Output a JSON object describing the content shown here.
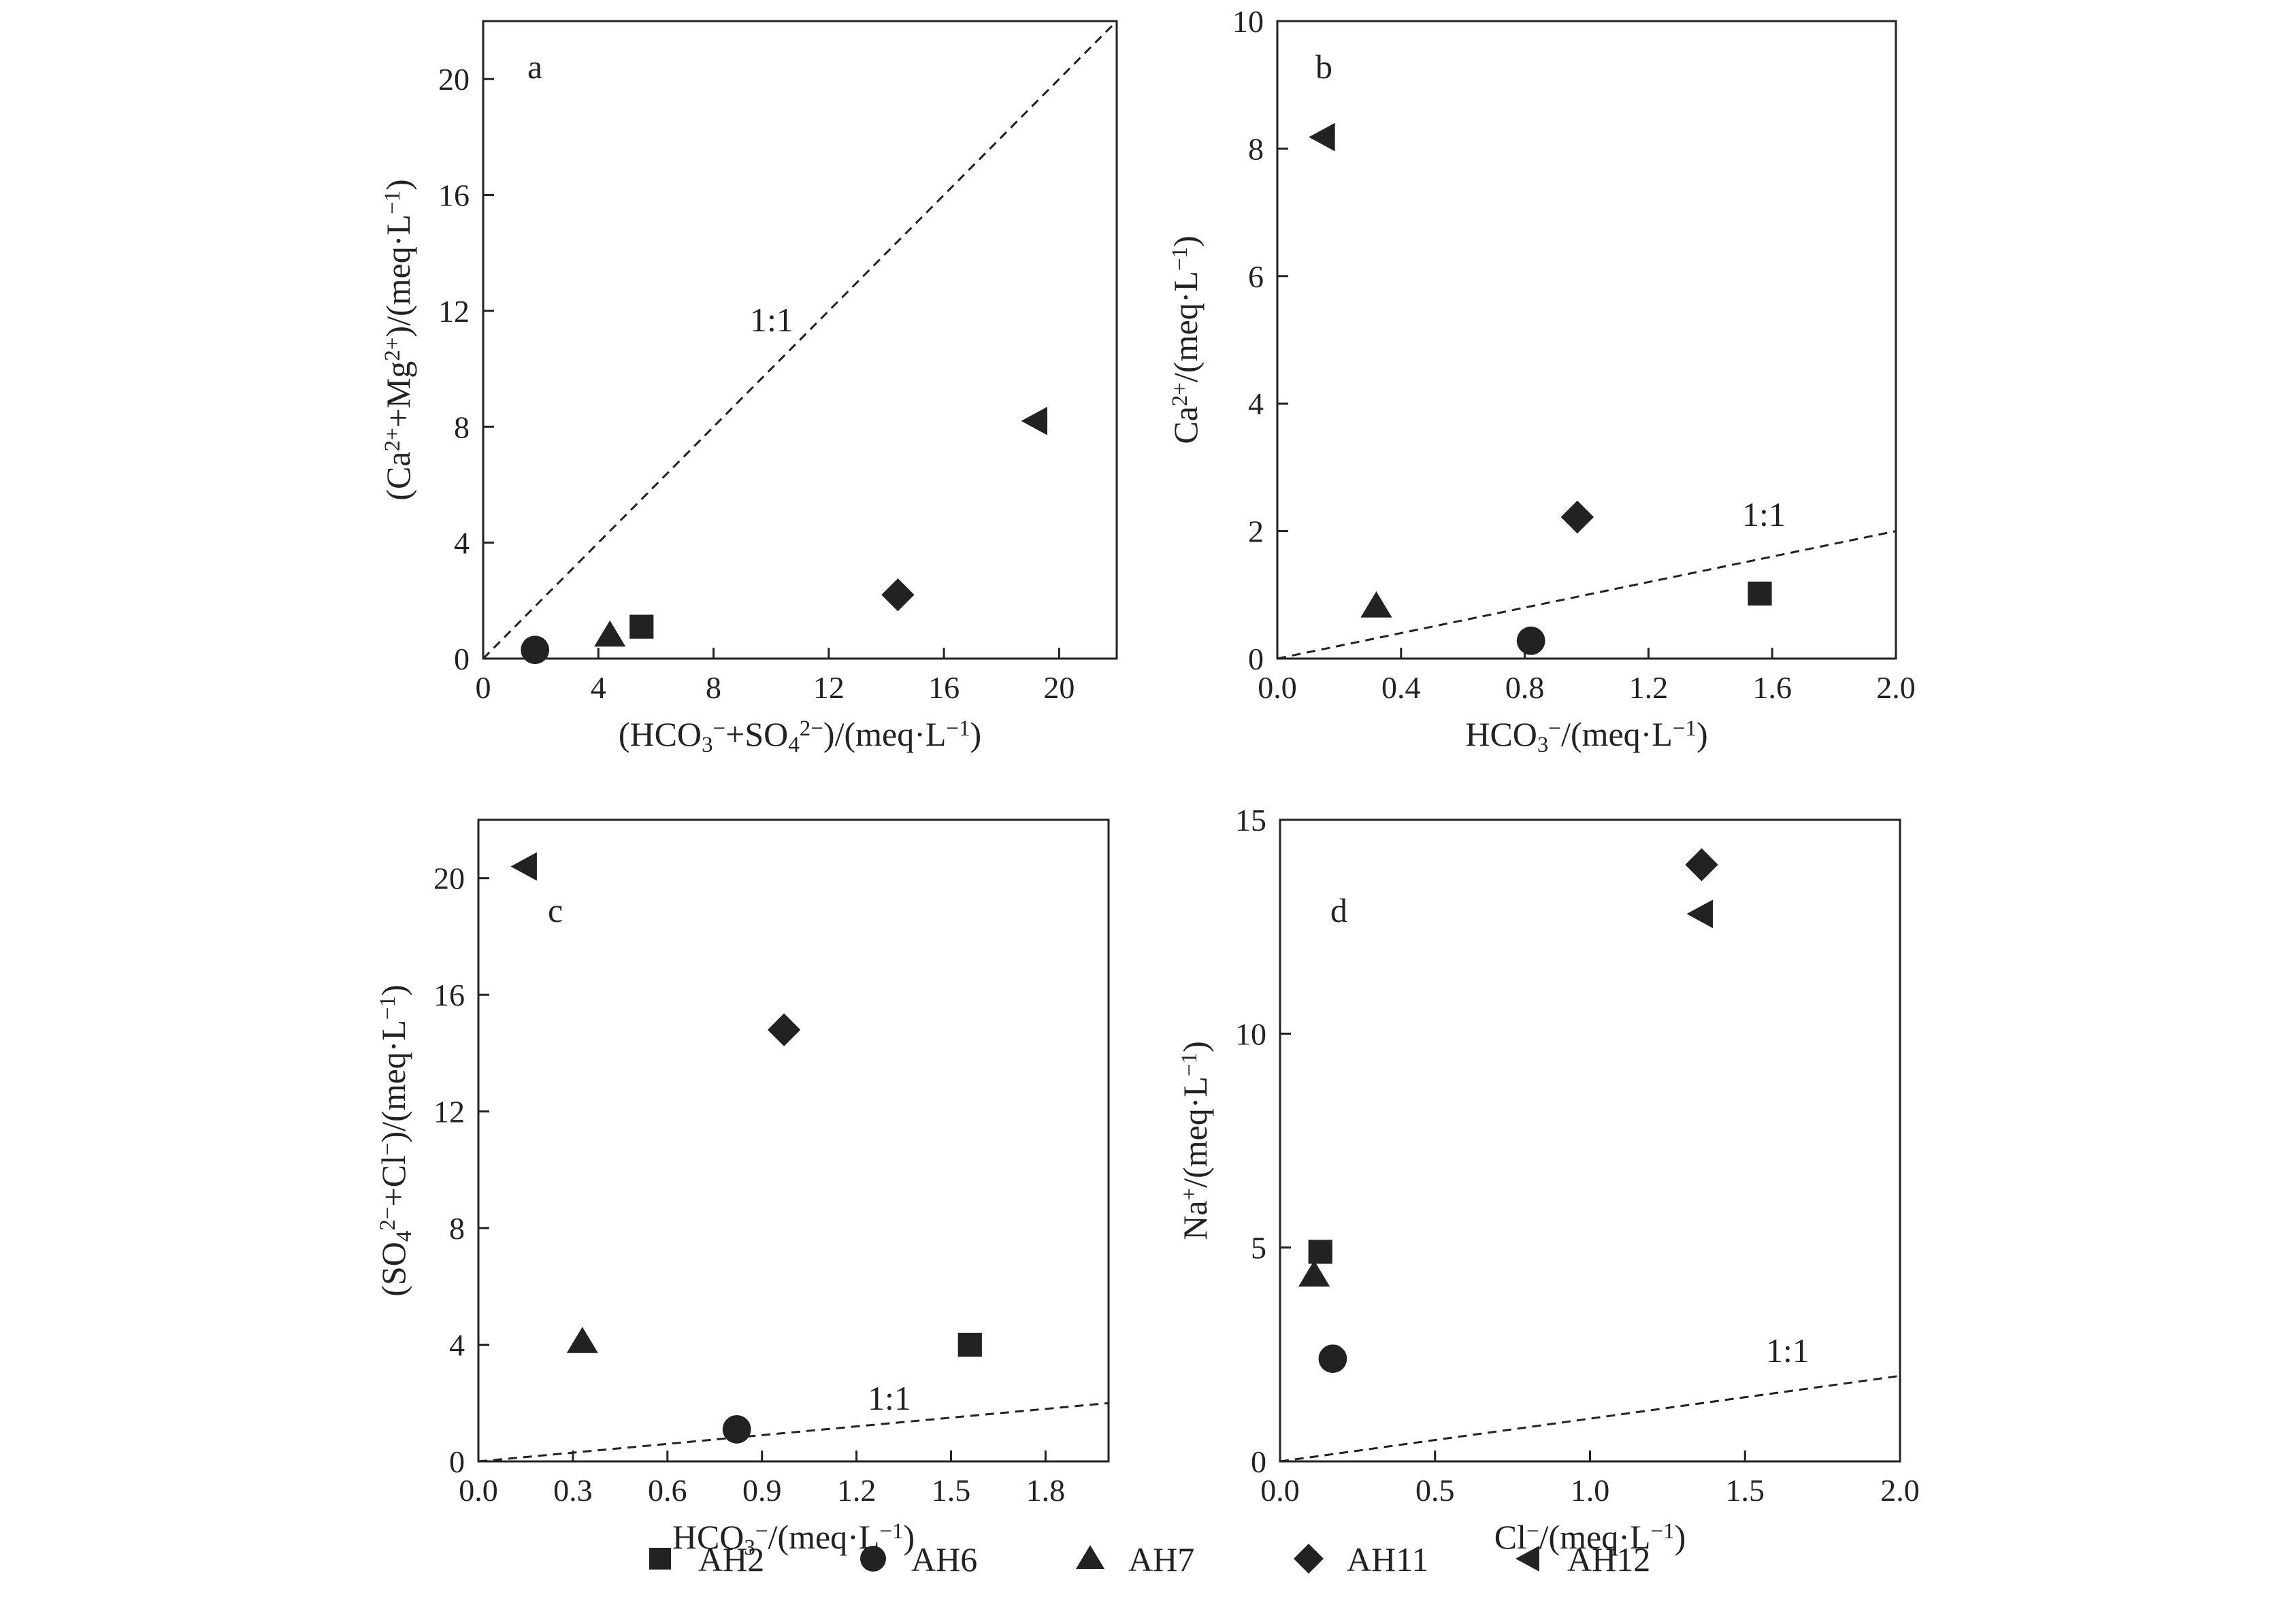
{
  "chart_data": [
    {
      "type": "scatter",
      "panel": "a",
      "xlabel_parts": [
        "(HCO",
        "3",
        "−",
        "+SO",
        "4",
        "2−",
        ")/(meq·L",
        "−1",
        ")"
      ],
      "ylabel_parts": [
        "(Ca",
        "2+",
        "+Mg",
        "2+",
        ")/(meq·L",
        "−1",
        ")"
      ],
      "xlim": [
        0,
        22
      ],
      "ylim": [
        0,
        22
      ],
      "xticks": [
        0,
        4,
        8,
        12,
        16,
        20
      ],
      "yticks": [
        0,
        4,
        8,
        12,
        16,
        20
      ],
      "xtick_labels": [
        "0",
        "4",
        "8",
        "12",
        "16",
        "20"
      ],
      "ytick_labels": [
        "0",
        "4",
        "8",
        "12",
        "16",
        "20"
      ],
      "reference_line": {
        "label": "1:1",
        "from": [
          0,
          0
        ],
        "to": [
          22,
          22
        ]
      },
      "series": [
        {
          "name": "AH2",
          "x": [
            5.5
          ],
          "y": [
            1.1
          ]
        },
        {
          "name": "AH6",
          "x": [
            1.8
          ],
          "y": [
            0.3
          ]
        },
        {
          "name": "AH7",
          "x": [
            4.4
          ],
          "y": [
            0.8
          ]
        },
        {
          "name": "AH11",
          "x": [
            14.4
          ],
          "y": [
            2.2
          ]
        },
        {
          "name": "AH12",
          "x": [
            19.2
          ],
          "y": [
            8.2
          ]
        }
      ]
    },
    {
      "type": "scatter",
      "panel": "b",
      "xlabel_parts": [
        "HCO",
        "3",
        "−",
        "/(meq·L",
        "−1",
        ")"
      ],
      "ylabel_parts": [
        "Ca",
        "2+",
        "/(meq·L",
        "−1",
        ")"
      ],
      "xlim": [
        0,
        2.0
      ],
      "ylim": [
        0,
        10
      ],
      "xticks": [
        0,
        0.4,
        0.8,
        1.2,
        1.6,
        2.0
      ],
      "yticks": [
        0,
        2,
        4,
        6,
        8,
        10
      ],
      "xtick_labels": [
        "0.0",
        "0.4",
        "0.8",
        "1.2",
        "1.6",
        "2.0"
      ],
      "ytick_labels": [
        "0",
        "2",
        "4",
        "6",
        "8",
        "10"
      ],
      "reference_line": {
        "label": "1:1",
        "from": [
          0,
          0
        ],
        "to": [
          2.0,
          2.0
        ]
      },
      "series": [
        {
          "name": "AH2",
          "x": [
            1.56
          ],
          "y": [
            1.02
          ]
        },
        {
          "name": "AH6",
          "x": [
            0.82
          ],
          "y": [
            0.28
          ]
        },
        {
          "name": "AH7",
          "x": [
            0.32
          ],
          "y": [
            0.82
          ]
        },
        {
          "name": "AH11",
          "x": [
            0.97
          ],
          "y": [
            2.22
          ]
        },
        {
          "name": "AH12",
          "x": [
            0.15
          ],
          "y": [
            8.18
          ]
        }
      ]
    },
    {
      "type": "scatter",
      "panel": "c",
      "xlabel_parts": [
        "HCO",
        "3",
        "−",
        "/(meq·L",
        "−1",
        ")"
      ],
      "ylabel_parts": [
        "(SO",
        "4",
        "2−",
        "+Cl",
        "−",
        ")/(meq·L",
        "−1",
        ")"
      ],
      "xlim": [
        0,
        2.0
      ],
      "ylim": [
        0,
        22
      ],
      "xticks": [
        0,
        0.3,
        0.6,
        0.9,
        1.2,
        1.5,
        1.8
      ],
      "yticks": [
        0,
        4,
        8,
        12,
        16,
        20
      ],
      "xtick_labels": [
        "0.0",
        "0.3",
        "0.6",
        "0.9",
        "1.2",
        "1.5",
        "1.8"
      ],
      "ytick_labels": [
        "0",
        "4",
        "8",
        "12",
        "16",
        "20"
      ],
      "reference_line": {
        "label": "1:1",
        "from": [
          0,
          0
        ],
        "to": [
          2.0,
          2.0
        ]
      },
      "series": [
        {
          "name": "AH2",
          "x": [
            1.56
          ],
          "y": [
            4.0
          ]
        },
        {
          "name": "AH6",
          "x": [
            0.82
          ],
          "y": [
            1.1
          ]
        },
        {
          "name": "AH7",
          "x": [
            0.33
          ],
          "y": [
            4.1
          ]
        },
        {
          "name": "AH11",
          "x": [
            0.97
          ],
          "y": [
            14.8
          ]
        },
        {
          "name": "AH12",
          "x": [
            0.15
          ],
          "y": [
            20.4
          ]
        }
      ]
    },
    {
      "type": "scatter",
      "panel": "d",
      "xlabel_parts": [
        "Cl",
        "−",
        "/(meq·L",
        "−1",
        ")"
      ],
      "ylabel_parts": [
        "Na",
        "+",
        "/(meq·L",
        "−1",
        ")"
      ],
      "xlim": [
        0,
        2.0
      ],
      "ylim": [
        0,
        15
      ],
      "xticks": [
        0,
        0.5,
        1.0,
        1.5,
        2.0
      ],
      "yticks": [
        0,
        5,
        10,
        15
      ],
      "xtick_labels": [
        "0.0",
        "0.5",
        "1.0",
        "1.5",
        "2.0"
      ],
      "ytick_labels": [
        "0",
        "5",
        "10",
        "15"
      ],
      "reference_line": {
        "label": "1:1",
        "from": [
          0,
          0
        ],
        "to": [
          2.0,
          2.0
        ]
      },
      "series": [
        {
          "name": "AH2",
          "x": [
            0.13
          ],
          "y": [
            4.9
          ]
        },
        {
          "name": "AH6",
          "x": [
            0.17
          ],
          "y": [
            2.4
          ]
        },
        {
          "name": "AH7",
          "x": [
            0.11
          ],
          "y": [
            4.35
          ]
        },
        {
          "name": "AH11",
          "x": [
            1.36
          ],
          "y": [
            13.95
          ]
        },
        {
          "name": "AH12",
          "x": [
            1.36
          ],
          "y": [
            12.8
          ]
        }
      ]
    }
  ],
  "legend": {
    "position": "bottom",
    "items": [
      {
        "name": "AH2",
        "marker": "square"
      },
      {
        "name": "AH6",
        "marker": "circle"
      },
      {
        "name": "AH7",
        "marker": "triangle"
      },
      {
        "name": "AH11",
        "marker": "diamond"
      },
      {
        "name": "AH12",
        "marker": "left-triangle"
      }
    ]
  },
  "colors": {
    "marker": "#222222",
    "axis": "#222222",
    "reference_line": "#222222"
  }
}
